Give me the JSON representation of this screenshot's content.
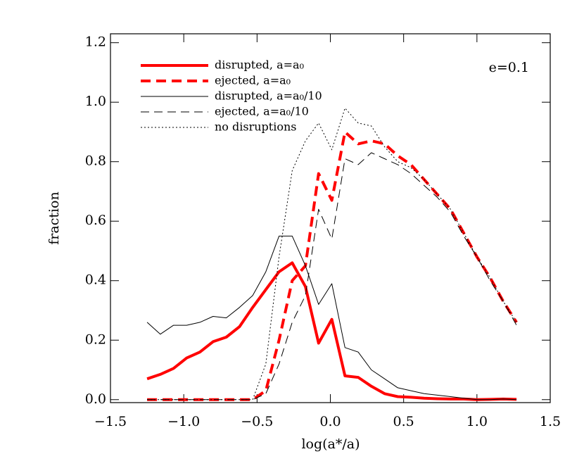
{
  "chart_data": {
    "type": "line",
    "xlabel": "log(a*/a)",
    "ylabel": "fraction",
    "annotation": "e=0.1",
    "x": [
      -1.25,
      -1.16,
      -1.07,
      -0.98,
      -0.89,
      -0.8,
      -0.71,
      -0.62,
      -0.53,
      -0.44,
      -0.35,
      -0.26,
      -0.17,
      -0.08,
      0.01,
      0.1,
      0.19,
      0.28,
      0.37,
      0.46,
      0.55,
      0.64,
      0.73,
      0.82,
      0.91,
      1.0,
      1.09,
      1.18,
      1.27
    ],
    "series": [
      {
        "name": "disrupted, a=a₀",
        "color": "#ff0000",
        "width": 4,
        "dash": "solid",
        "values": [
          0.07,
          0.085,
          0.105,
          0.14,
          0.16,
          0.195,
          0.21,
          0.245,
          0.31,
          0.37,
          0.43,
          0.46,
          0.38,
          0.19,
          0.27,
          0.08,
          0.075,
          0.045,
          0.02,
          0.01,
          0.008,
          0.005,
          0.003,
          0.002,
          0.002,
          0,
          0.001,
          0.002,
          0.001
        ]
      },
      {
        "name": "ejected, a=a₀",
        "color": "#ff0000",
        "width": 4,
        "dash": "dashed",
        "values": [
          0,
          0,
          0,
          0,
          0,
          0,
          0,
          0,
          0,
          0.03,
          0.2,
          0.4,
          0.45,
          0.76,
          0.67,
          0.9,
          0.86,
          0.87,
          0.86,
          0.82,
          0.79,
          0.74,
          0.69,
          0.64,
          0.56,
          0.48,
          0.41,
          0.33,
          0.26
        ]
      },
      {
        "name": "disrupted, a=a₀/10",
        "color": "#000000",
        "width": 1,
        "dash": "solid",
        "values": [
          0.26,
          0.22,
          0.25,
          0.25,
          0.26,
          0.28,
          0.275,
          0.31,
          0.35,
          0.43,
          0.55,
          0.55,
          0.45,
          0.32,
          0.39,
          0.175,
          0.16,
          0.1,
          0.07,
          0.04,
          0.03,
          0.02,
          0.015,
          0.01,
          0.005,
          0,
          0,
          0.002,
          0
        ]
      },
      {
        "name": "ejected, a=a₀/10",
        "color": "#000000",
        "width": 1,
        "dash": "dashed",
        "values": [
          0,
          0,
          0,
          0,
          0,
          0,
          0,
          0,
          0,
          0.02,
          0.12,
          0.26,
          0.35,
          0.64,
          0.54,
          0.81,
          0.79,
          0.83,
          0.81,
          0.79,
          0.76,
          0.72,
          0.68,
          0.63,
          0.55,
          0.48,
          0.4,
          0.33,
          0.25
        ]
      },
      {
        "name": "no disruptions",
        "color": "#000000",
        "width": 1,
        "dash": "dotted",
        "values": [
          0,
          0,
          0,
          0,
          0,
          0,
          0,
          0,
          0,
          0.12,
          0.48,
          0.77,
          0.87,
          0.93,
          0.84,
          0.98,
          0.93,
          0.92,
          0.85,
          0.8,
          0.78,
          0.74,
          0.69,
          0.64,
          0.56,
          0.48,
          0.41,
          0.33,
          0.26
        ]
      }
    ],
    "xlim": [
      -1.5,
      1.5
    ],
    "xticks": [
      {
        "value": -1.5,
        "label": "−1.5"
      },
      {
        "value": -1.0,
        "label": "−1.0"
      },
      {
        "value": -0.5,
        "label": "−0.5"
      },
      {
        "value": 0,
        "label": "0.0"
      },
      0.5,
      {
        "value": 1.0,
        "label": "1.0"
      },
      1.5
    ],
    "ylim": [
      -0.01,
      1.23
    ],
    "yticks": [
      {
        "value": 0,
        "label": "0.0"
      },
      0.2,
      0.4,
      0.6,
      0.8,
      {
        "value": 1.0,
        "label": "1.0"
      },
      1.2
    ],
    "legend": "upper left"
  }
}
